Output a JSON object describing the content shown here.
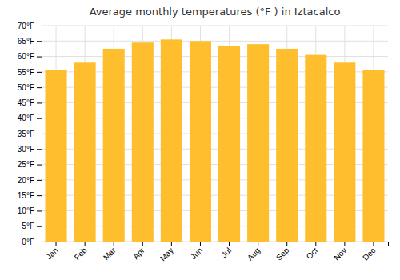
{
  "chart_data": {
    "type": "bar",
    "title": "Average monthly temperatures (°F ) in Iztacalco",
    "categories": [
      "Jan",
      "Feb",
      "Mar",
      "Apr",
      "May",
      "Jun",
      "Jul",
      "Aug",
      "Sep",
      "Oct",
      "Nov",
      "Dec"
    ],
    "values": [
      55.5,
      58.0,
      62.5,
      64.5,
      65.5,
      65.0,
      63.5,
      64.0,
      62.5,
      60.5,
      58.0,
      55.5
    ],
    "color": "#FFBE2D",
    "ylim": [
      0,
      70
    ],
    "yticks": [
      {
        "value": 0,
        "label": "0°F"
      },
      {
        "value": 5,
        "label": "5°F"
      },
      {
        "value": 10,
        "label": "10°F"
      },
      {
        "value": 15,
        "label": "15°F"
      },
      {
        "value": 20,
        "label": "20°F"
      },
      {
        "value": 25,
        "label": "25°F"
      },
      {
        "value": 30,
        "label": "30°F"
      },
      {
        "value": 35,
        "label": "35°F"
      },
      {
        "value": 40,
        "label": "40°F"
      },
      {
        "value": 45,
        "label": "45°F"
      },
      {
        "value": 50,
        "label": "50°F"
      },
      {
        "value": 55,
        "label": "55°F"
      },
      {
        "value": 60,
        "label": "60°F"
      },
      {
        "value": 65,
        "label": "65°F"
      },
      {
        "value": 70,
        "label": "70°F"
      }
    ],
    "grid": true
  }
}
